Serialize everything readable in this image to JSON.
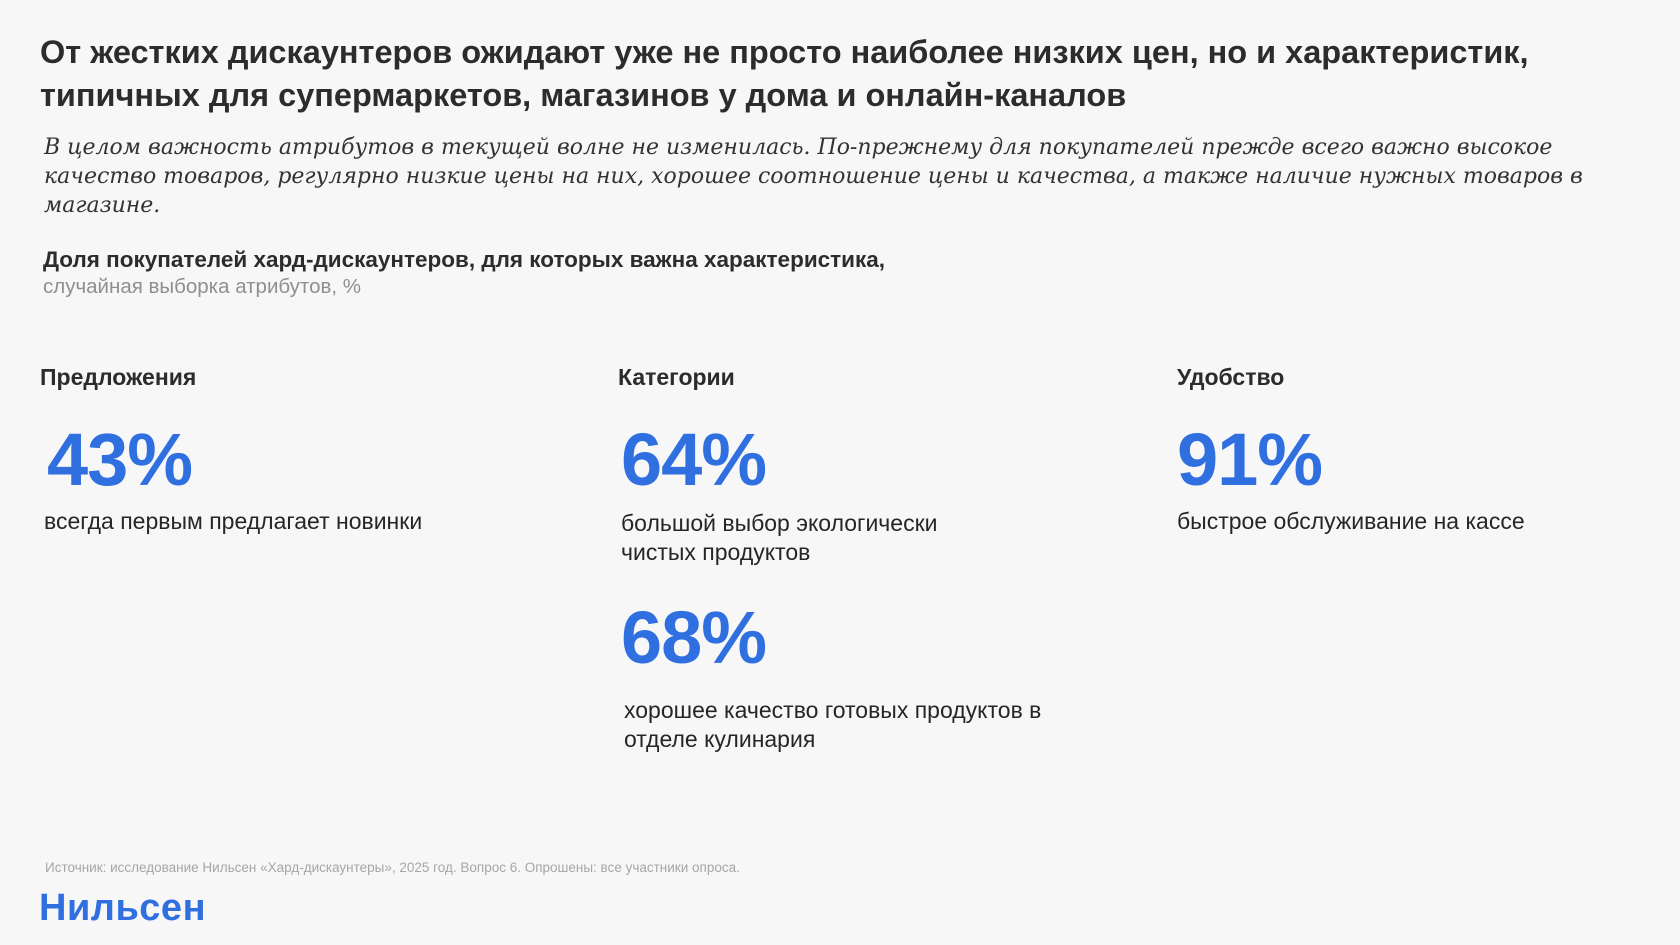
{
  "slide": {
    "title": "От жестких дискаунтеров ожидают уже не просто наиболее низких цен, но и характеристик, типичных для супермаркетов, магазинов у дома и онлайн-каналов",
    "lead": "В целом важность атрибутов в текущей волне не изменилась. По-прежнему для покупателей прежде всего важно высокое качество товаров, регулярно низкие цены на них, хорошее соотношение цены и качества, а также наличие нужных товаров в магазине.",
    "chart_heading": "Доля покупателей хард-дискаунтеров, для которых важна характеристика,",
    "chart_subheading": "случайная выборка атрибутов, %"
  },
  "columns": [
    {
      "title": "Предложения",
      "stats": [
        {
          "value": "43%",
          "label": "всегда первым предлагает новинки"
        }
      ]
    },
    {
      "title": "Категории",
      "stats": [
        {
          "value": "64%",
          "label": "большой выбор экологически чистых продуктов"
        },
        {
          "value": "68%",
          "label": "хорошее качество готовых продуктов в отделе кулинария"
        }
      ]
    },
    {
      "title": "Удобство",
      "stats": [
        {
          "value": "91%",
          "label": "быстрое обслуживание на кассе"
        }
      ]
    }
  ],
  "footer": {
    "source": "Источник: исследование Нильсен «Хард-дискаунтеры», 2025 год. Вопрос 6. Опрошены: все участники опроса.",
    "logo_text": "Нильсен"
  },
  "colors": {
    "accent": "#2f6fe0",
    "text": "#2c2c2c",
    "muted": "#8f8f8f",
    "background": "#f7f7f7"
  }
}
